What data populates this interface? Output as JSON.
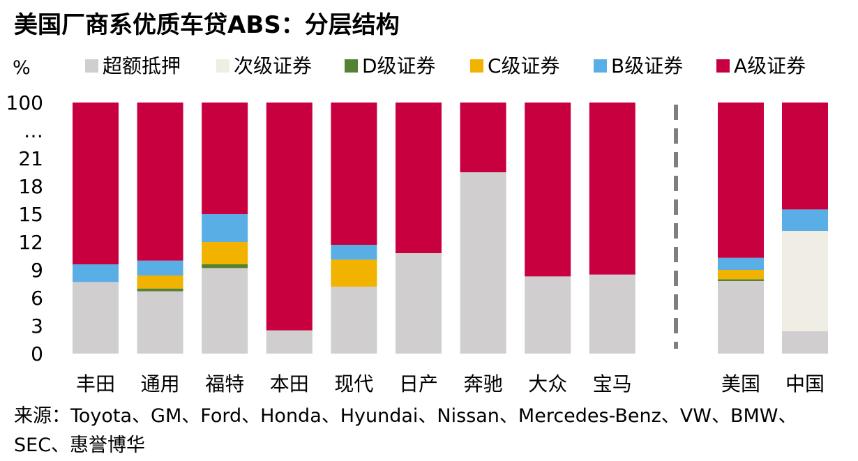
{
  "title": "美国厂商系优质车贷ABS：分层结构",
  "source": "来源：Toyota、GM、Ford、Honda、Hyundai、Nissan、Mercedes-Benz、VW、BMW、SEC、惠誉博华",
  "chart_data": {
    "type": "bar",
    "stacked": true,
    "unit_label": "%",
    "y_ticks": [
      "0",
      "3",
      "6",
      "9",
      "12",
      "15",
      "18",
      "21",
      "…",
      "100"
    ],
    "y_axis_note": "broken axis: segment 21–100 compressed into two tick intervals",
    "ylim": [
      0,
      100
    ],
    "categories": [
      "丰田",
      "通用",
      "福特",
      "本田",
      "现代",
      "日产",
      "奔驰",
      "大众",
      "宝马",
      "美国",
      "中国"
    ],
    "divider_after_category": "宝马",
    "series": [
      {
        "name": "超额抵押",
        "color": "#d0cece",
        "values": [
          7.7,
          6.7,
          9.2,
          2.5,
          7.2,
          10.8,
          19.5,
          8.3,
          8.5,
          7.8,
          2.4
        ]
      },
      {
        "name": "次级证券",
        "color": "#efede4",
        "values": [
          0,
          0,
          0,
          0,
          0,
          0,
          0,
          0,
          0,
          0,
          10.8
        ]
      },
      {
        "name": "D级证券",
        "color": "#548235",
        "values": [
          0,
          0.3,
          0.4,
          0,
          0,
          0,
          0,
          0,
          0,
          0.2,
          0
        ]
      },
      {
        "name": "C级证券",
        "color": "#f2b200",
        "values": [
          0,
          1.4,
          2.4,
          0,
          2.9,
          0,
          0,
          0,
          0,
          1.0,
          0
        ]
      },
      {
        "name": "B级证券",
        "color": "#5aaee6",
        "values": [
          1.9,
          1.6,
          3.0,
          0,
          1.6,
          0,
          0,
          0,
          0,
          1.3,
          2.3
        ]
      },
      {
        "name": "A级证券",
        "color": "#c8003f",
        "values": [
          90.4,
          90.0,
          85.0,
          97.5,
          88.3,
          89.2,
          80.5,
          91.7,
          91.5,
          89.7,
          84.5
        ]
      }
    ],
    "legend_position": "top",
    "grid": false
  }
}
